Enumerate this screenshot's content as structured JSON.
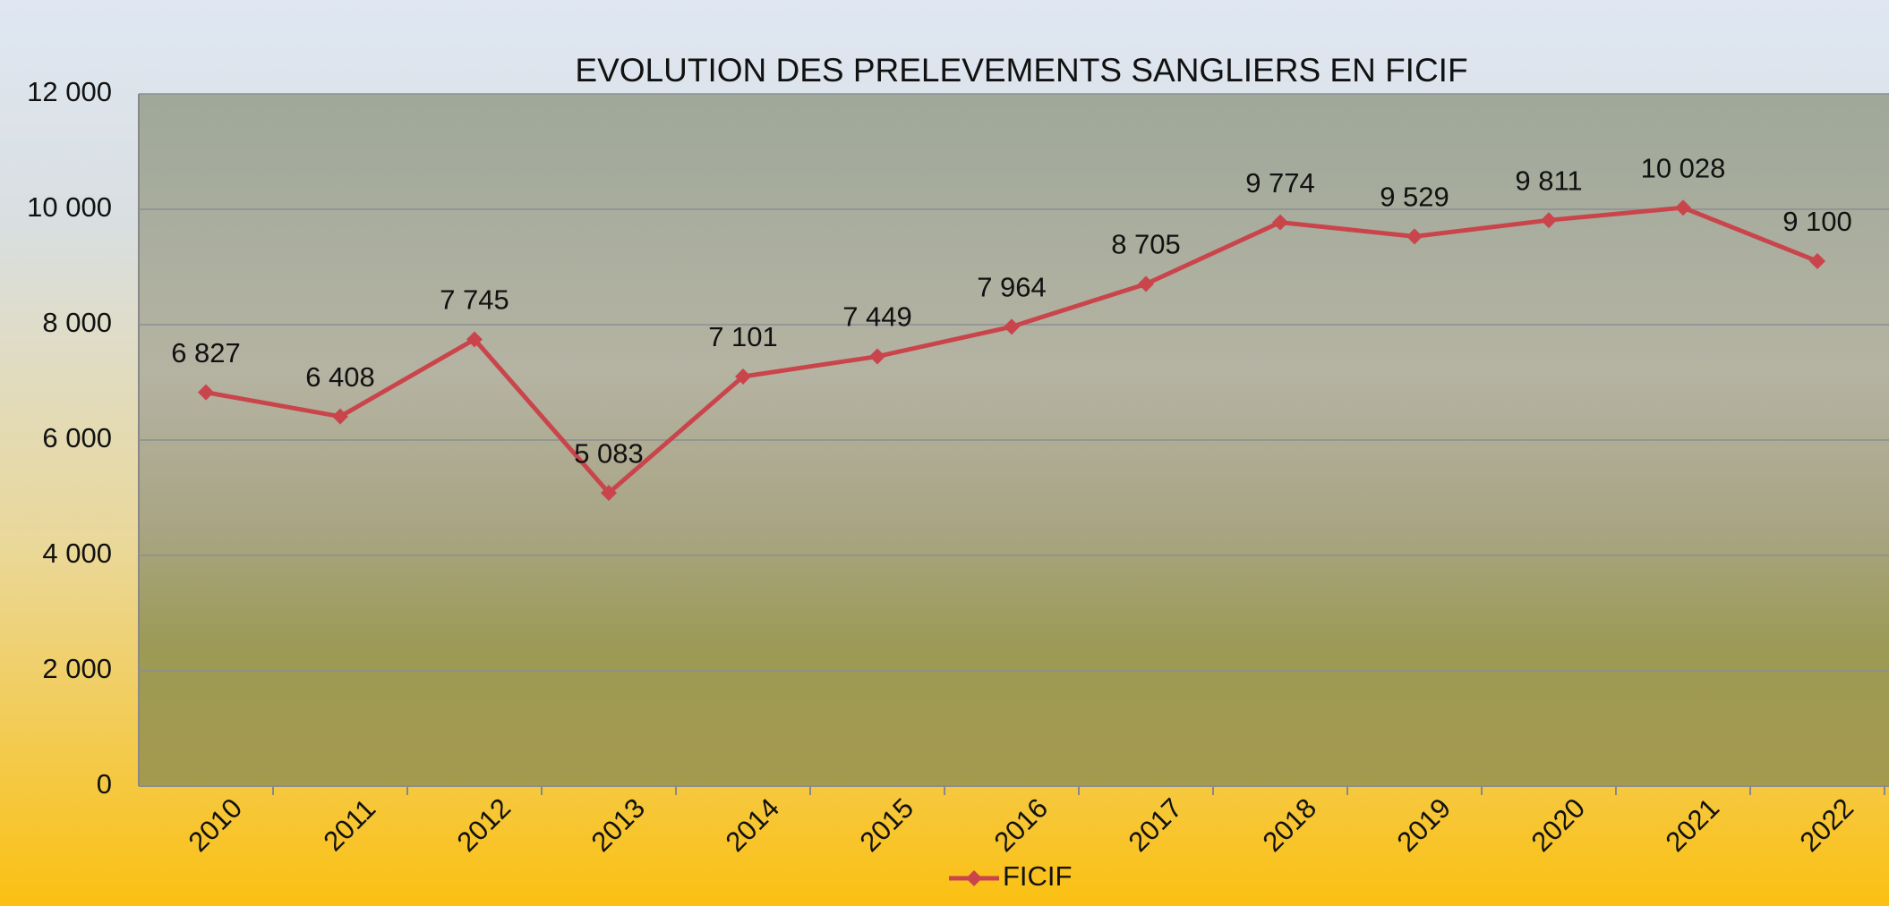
{
  "chart_data": {
    "type": "line",
    "title": "EVOLUTION DES PRELEVEMENTS SANGLIERS EN FICIF",
    "categories": [
      "2010",
      "2011",
      "2012",
      "2013",
      "2014",
      "2015",
      "2016",
      "2017",
      "2018",
      "2019",
      "2020",
      "2021",
      "2022"
    ],
    "series": [
      {
        "name": "FICIF",
        "color": "#c9454b",
        "values": [
          6827,
          6408,
          7745,
          5083,
          7101,
          7449,
          7964,
          8705,
          9774,
          9529,
          9811,
          10028,
          9100
        ],
        "value_labels": [
          "6 827",
          "6 408",
          "7 745",
          "5 083",
          "7 101",
          "7 449",
          "7 964",
          "8 705",
          "9 774",
          "9 529",
          "9 811",
          "10 028",
          "9 100"
        ]
      }
    ],
    "ylim": [
      0,
      12000
    ],
    "yticks": [
      0,
      {
        "value": 2000,
        "label": "2 000"
      },
      {
        "value": 4000,
        "label": "4 000"
      },
      {
        "value": 6000,
        "label": "6 000"
      },
      {
        "value": 8000,
        "label": "8 000"
      },
      {
        "value": 10000,
        "label": "10 000"
      },
      {
        "value": 12000,
        "label": "12 000"
      }
    ],
    "grid": true,
    "legend": "bottom"
  }
}
